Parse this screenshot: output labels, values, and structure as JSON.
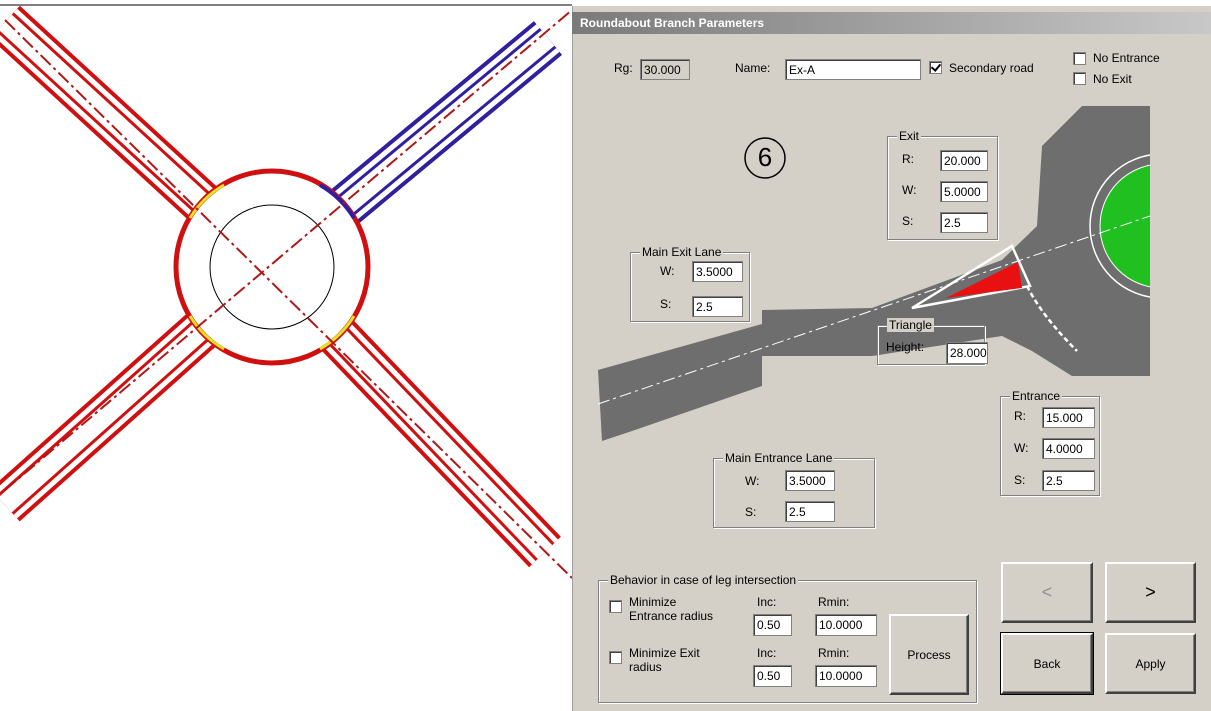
{
  "window": {
    "title": "Roundabout Branch Parameters"
  },
  "header": {
    "rg_label": "Rg:",
    "rg_value": "30.000",
    "name_label": "Name:",
    "name_value": "Ex-A",
    "secondary_road": {
      "label": "Secondary road",
      "checked": true
    },
    "no_entrance": {
      "label": "No Entrance",
      "checked": false
    },
    "no_exit": {
      "label": "No Exit",
      "checked": false
    }
  },
  "diagram": {
    "branch_number": "6"
  },
  "exit": {
    "title": "Exit",
    "r_label": "R:",
    "r": "20.000",
    "w_label": "W:",
    "w": "5.0000",
    "s_label": "S:",
    "s": "2.5"
  },
  "main_exit_lane": {
    "title": "Main Exit Lane",
    "w_label": "W:",
    "w": "3.5000",
    "s_label": "S:",
    "s": "2.5"
  },
  "triangle": {
    "title": "Triangle",
    "height_label": "Height:",
    "height": "28.000"
  },
  "entrance": {
    "title": "Entrance",
    "r_label": "R:",
    "r": "15.000",
    "w_label": "W:",
    "w": "4.0000",
    "s_label": "S:",
    "s": "2.5"
  },
  "main_entrance_lane": {
    "title": "Main Entrance Lane",
    "w_label": "W:",
    "w": "3.5000",
    "s_label": "S:",
    "s": "2.5"
  },
  "behavior": {
    "title": "Behavior in case of leg intersection",
    "entrance": {
      "label_lines": [
        "Minimize",
        "Entrance radius"
      ],
      "checked": false,
      "inc_label": "Inc:",
      "inc": "0.50",
      "rmin_label": "Rmin:",
      "rmin": "10.0000"
    },
    "exit": {
      "label_lines": [
        "Minimize Exit",
        "radius"
      ],
      "checked": false,
      "inc_label": "Inc:",
      "inc": "0.50",
      "rmin_label": "Rmin:",
      "rmin": "10.0000"
    },
    "process": "Process"
  },
  "buttons": {
    "prev": "<",
    "next": ">",
    "back": "Back",
    "apply": "Apply"
  }
}
